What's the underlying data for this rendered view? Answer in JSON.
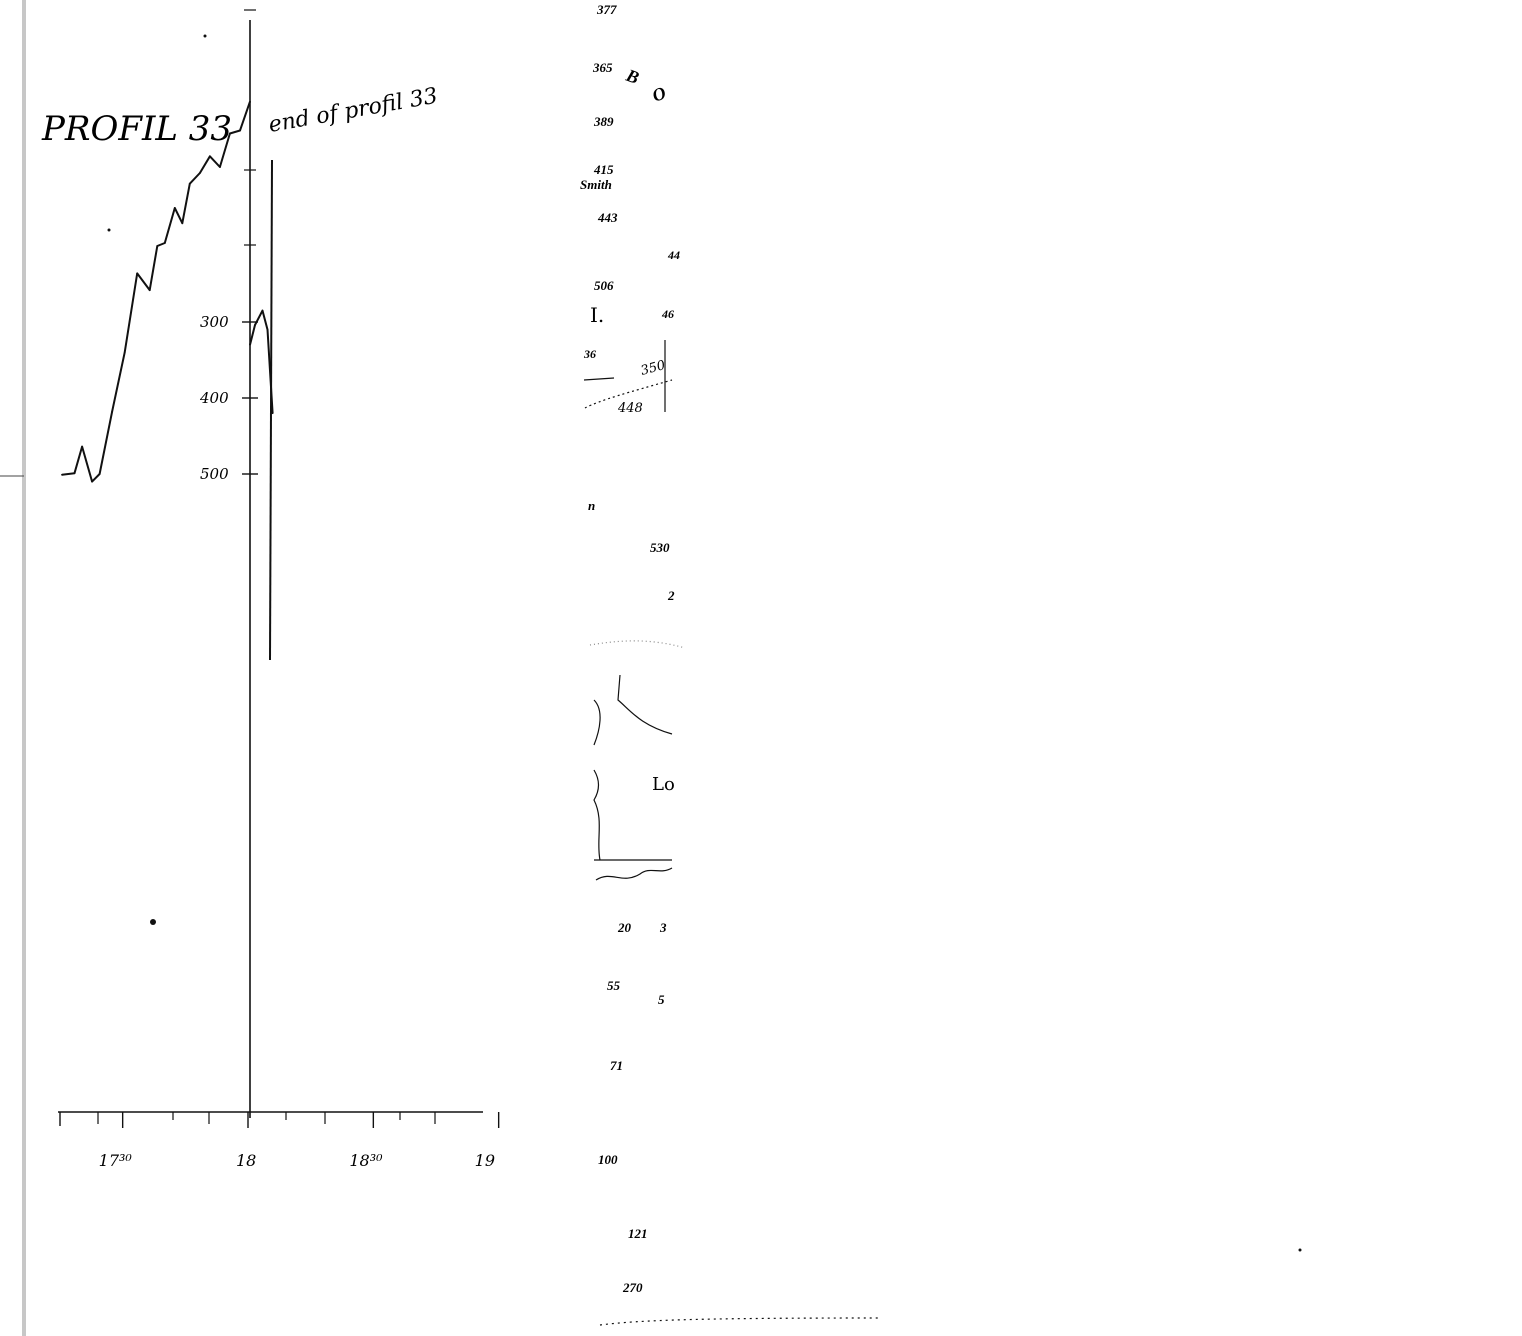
{
  "chart_data": {
    "type": "line",
    "title": "PROFIL 33",
    "annotation": "end of profil 33",
    "y_axis": {
      "ticks": [
        "300",
        "400",
        "500"
      ],
      "inverted": true
    },
    "x_axis": {
      "ticks": [
        "17³⁰",
        "18",
        "18³⁰",
        "19"
      ]
    },
    "series": [
      {
        "x": [
          17.25,
          17.3,
          17.33,
          17.37,
          17.4,
          17.45,
          17.5,
          17.55,
          17.6,
          17.63,
          17.66,
          17.7,
          17.73,
          17.76,
          17.8,
          17.84,
          17.88,
          17.92,
          17.96,
          18.0
        ],
        "values": [
          501,
          499,
          464,
          510,
          500,
          418,
          340,
          236,
          258,
          200,
          196,
          150,
          170,
          118,
          104,
          82,
          96,
          52,
          48,
          10
        ]
      },
      {
        "x": [
          18.0,
          18.02,
          18.05,
          18.07,
          18.09
        ],
        "values": [
          330,
          304,
          285,
          310,
          420
        ]
      }
    ]
  },
  "right_margin_labels": [
    "377",
    "365",
    "B",
    "O",
    "389",
    "415",
    "Smith",
    "443",
    "44",
    "506",
    "I.",
    "46",
    "36",
    "350",
    "448",
    "n",
    "530",
    "2",
    "Lo",
    "20",
    "3",
    "55",
    "5",
    "71",
    "100",
    "121",
    "270"
  ],
  "colors": {
    "ink": "#111111",
    "paper": "#ffffff",
    "scan_edge": "#c7c7c7"
  }
}
